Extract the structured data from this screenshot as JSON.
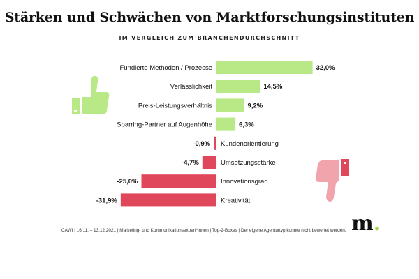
{
  "title": "Stärken und Schwächen von Marktforschungsinstituten",
  "subtitle": "IM VERGLEICH ZUM BRANCHENDURCHSCHNITT",
  "footnote": "CAWI | 16.11. – 13.12.2021 | Marketing- und Kommunikationsexpert*innen | Top-2-Boxes | Der eigene Agenturtyp konnte nicht bewertet werden.",
  "logo": {
    "letter": "m",
    "dot": "."
  },
  "colors": {
    "positive": "#b8e986",
    "negative": "#e0475a",
    "thumb_up": "#b8e986",
    "thumb_down": "#f2a4ac",
    "logo_dot": "#a4d34a"
  },
  "icons": [
    "thumbs-up-icon",
    "thumbs-down-icon"
  ],
  "chart_data": {
    "type": "bar",
    "orientation": "horizontal",
    "title": "Stärken und Schwächen von Marktforschungsinstituten",
    "subtitle": "IM VERGLEICH ZUM BRANCHENDURCHSCHNITT",
    "categories": [
      "Fundierte Methoden / Prozesse",
      "Verlässlichkeit",
      "Preis-Leistungsverhältnis",
      "Sparring-Partner auf Augenhöhe",
      "Kundenorientierung",
      "Umsetzungsstärke",
      "Innovationsgrad",
      "Kreativität"
    ],
    "values": [
      32.0,
      14.5,
      9.2,
      6.3,
      -0.9,
      -4.7,
      -25.0,
      -31.9
    ],
    "labels": [
      "32,0%",
      "14,5%",
      "9,2%",
      "6,3%",
      "-0,9%",
      "-4,7%",
      "-25,0%",
      "-31,9%"
    ],
    "xlim": [
      -35,
      35
    ],
    "grid": false,
    "legend": "none"
  }
}
